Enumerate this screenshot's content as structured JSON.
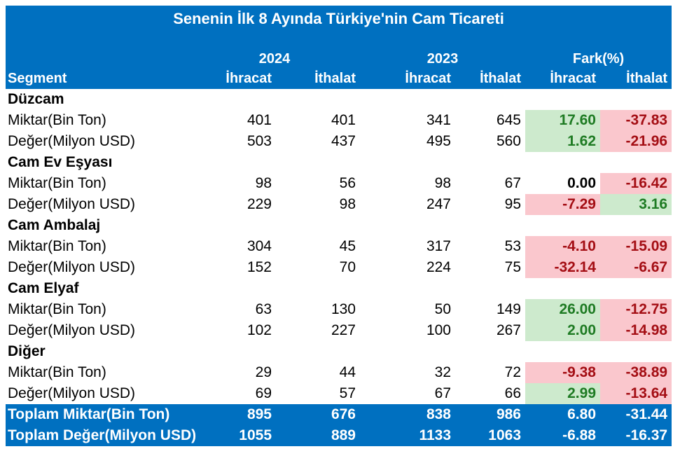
{
  "chart_data": {
    "type": "table",
    "title": "Senenin İlk 8 Ayında Türkiye'nin Cam Ticareti",
    "column_groups": [
      "2024",
      "2023",
      "Fark(%)"
    ],
    "columns": [
      "Segment",
      "İhracat",
      "İthalat",
      "İhracat",
      "İthalat",
      "İhracat",
      "İthalat"
    ],
    "sections": [
      {
        "segment": "Düzcam",
        "rows": [
          {
            "label": "Miktar(Bin Ton)",
            "values": [
              401,
              401,
              341,
              645
            ],
            "fark": [
              {
                "value": "17.60",
                "status": "positive"
              },
              {
                "value": "-37.83",
                "status": "negative"
              }
            ]
          },
          {
            "label": "Değer(Milyon USD)",
            "values": [
              503,
              437,
              495,
              560
            ],
            "fark": [
              {
                "value": "1.62",
                "status": "positive"
              },
              {
                "value": "-21.96",
                "status": "negative"
              }
            ]
          }
        ]
      },
      {
        "segment": "Cam Ev Eşyası",
        "rows": [
          {
            "label": "Miktar(Bin Ton)",
            "values": [
              98,
              56,
              98,
              67
            ],
            "fark": [
              {
                "value": "0.00",
                "status": "neutral"
              },
              {
                "value": "-16.42",
                "status": "negative"
              }
            ]
          },
          {
            "label": "Değer(Milyon USD)",
            "values": [
              229,
              98,
              247,
              95
            ],
            "fark": [
              {
                "value": "-7.29",
                "status": "negative"
              },
              {
                "value": "3.16",
                "status": "positive"
              }
            ]
          }
        ]
      },
      {
        "segment": "Cam Ambalaj",
        "rows": [
          {
            "label": "Miktar(Bin Ton)",
            "values": [
              304,
              45,
              317,
              53
            ],
            "fark": [
              {
                "value": "-4.10",
                "status": "negative"
              },
              {
                "value": "-15.09",
                "status": "negative"
              }
            ]
          },
          {
            "label": "Değer(Milyon USD)",
            "values": [
              152,
              70,
              224,
              75
            ],
            "fark": [
              {
                "value": "-32.14",
                "status": "negative"
              },
              {
                "value": "-6.67",
                "status": "negative"
              }
            ]
          }
        ]
      },
      {
        "segment": "Cam Elyaf",
        "rows": [
          {
            "label": "Miktar(Bin Ton)",
            "values": [
              63,
              130,
              50,
              149
            ],
            "fark": [
              {
                "value": "26.00",
                "status": "positive"
              },
              {
                "value": "-12.75",
                "status": "negative"
              }
            ]
          },
          {
            "label": "Değer(Milyon USD)",
            "values": [
              102,
              227,
              100,
              267
            ],
            "fark": [
              {
                "value": "2.00",
                "status": "positive"
              },
              {
                "value": "-14.98",
                "status": "negative"
              }
            ]
          }
        ]
      },
      {
        "segment": "Diğer",
        "rows": [
          {
            "label": "Miktar(Bin Ton)",
            "values": [
              29,
              44,
              32,
              72
            ],
            "fark": [
              {
                "value": "-9.38",
                "status": "negative"
              },
              {
                "value": "-38.89",
                "status": "negative"
              }
            ]
          },
          {
            "label": "Değer(Milyon USD)",
            "values": [
              69,
              57,
              67,
              66
            ],
            "fark": [
              {
                "value": "2.99",
                "status": "positive"
              },
              {
                "value": "-13.64",
                "status": "negative"
              }
            ]
          }
        ]
      }
    ],
    "totals": [
      {
        "label": "Toplam Miktar(Bin Ton)",
        "values": [
          "895",
          "676",
          "838",
          "986",
          "6.80",
          "-31.44"
        ]
      },
      {
        "label": "Toplam Değer(Milyon USD)",
        "values": [
          "1055",
          "889",
          "1133",
          "1063",
          "-6.88",
          "-16.37"
        ]
      }
    ]
  },
  "colors": {
    "header_blue": "#0070C0",
    "header_text": "#FFFFFF",
    "positive_bg": "#CDEACD",
    "positive_text": "#1E7B23",
    "negative_bg": "#FAC7CD",
    "negative_text": "#A40E14",
    "body_text": "#000000",
    "background": "#FFFFFF"
  }
}
